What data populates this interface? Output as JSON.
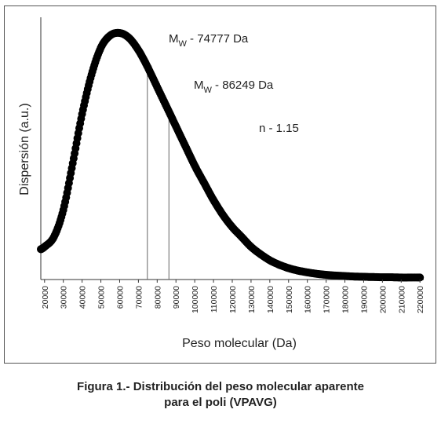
{
  "chart_data": {
    "type": "scatter",
    "xlabel": "Peso molecular (Da)",
    "ylabel": "Dispersión (a.u.)",
    "xlim": [
      18000,
      222000
    ],
    "ylim": [
      0,
      1.0
    ],
    "x_ticks": [
      20000,
      30000,
      40000,
      50000,
      60000,
      70000,
      80000,
      90000,
      100000,
      110000,
      120000,
      130000,
      140000,
      150000,
      160000,
      170000,
      180000,
      190000,
      200000,
      210000,
      220000
    ],
    "grid": false,
    "legend": "none",
    "series": [
      {
        "color": "#000000",
        "x": [
          18000,
          20000,
          25000,
          30000,
          35000,
          40000,
          45000,
          50000,
          55000,
          60000,
          65000,
          70000,
          75000,
          80000,
          85000,
          90000,
          95000,
          100000,
          105000,
          110000,
          115000,
          120000,
          125000,
          130000,
          135000,
          140000,
          145000,
          150000,
          155000,
          160000,
          165000,
          170000,
          175000,
          180000,
          185000,
          190000,
          195000,
          200000,
          205000,
          210000,
          215000,
          220000
        ],
        "y": [
          0.12,
          0.13,
          0.17,
          0.28,
          0.47,
          0.67,
          0.83,
          0.94,
          0.99,
          1.0,
          0.98,
          0.93,
          0.86,
          0.78,
          0.7,
          0.62,
          0.54,
          0.46,
          0.39,
          0.32,
          0.26,
          0.21,
          0.17,
          0.13,
          0.1,
          0.075,
          0.057,
          0.043,
          0.033,
          0.026,
          0.02,
          0.016,
          0.013,
          0.011,
          0.009,
          0.008,
          0.007,
          0.006,
          0.006,
          0.005,
          0.005,
          0.005
        ]
      }
    ],
    "annotations": [
      {
        "text": "M",
        "sub": "W",
        "rest": " - 74777 Da",
        "x": 74777
      },
      {
        "text": "M",
        "sub": "W",
        "rest": " - 86249 Da",
        "x": 86249
      },
      {
        "text": "n - 1.15"
      }
    ],
    "caption_lines": [
      "Figura 1.- Distribución del peso molecular aparente",
      "para el poli (VPAVG)"
    ]
  }
}
